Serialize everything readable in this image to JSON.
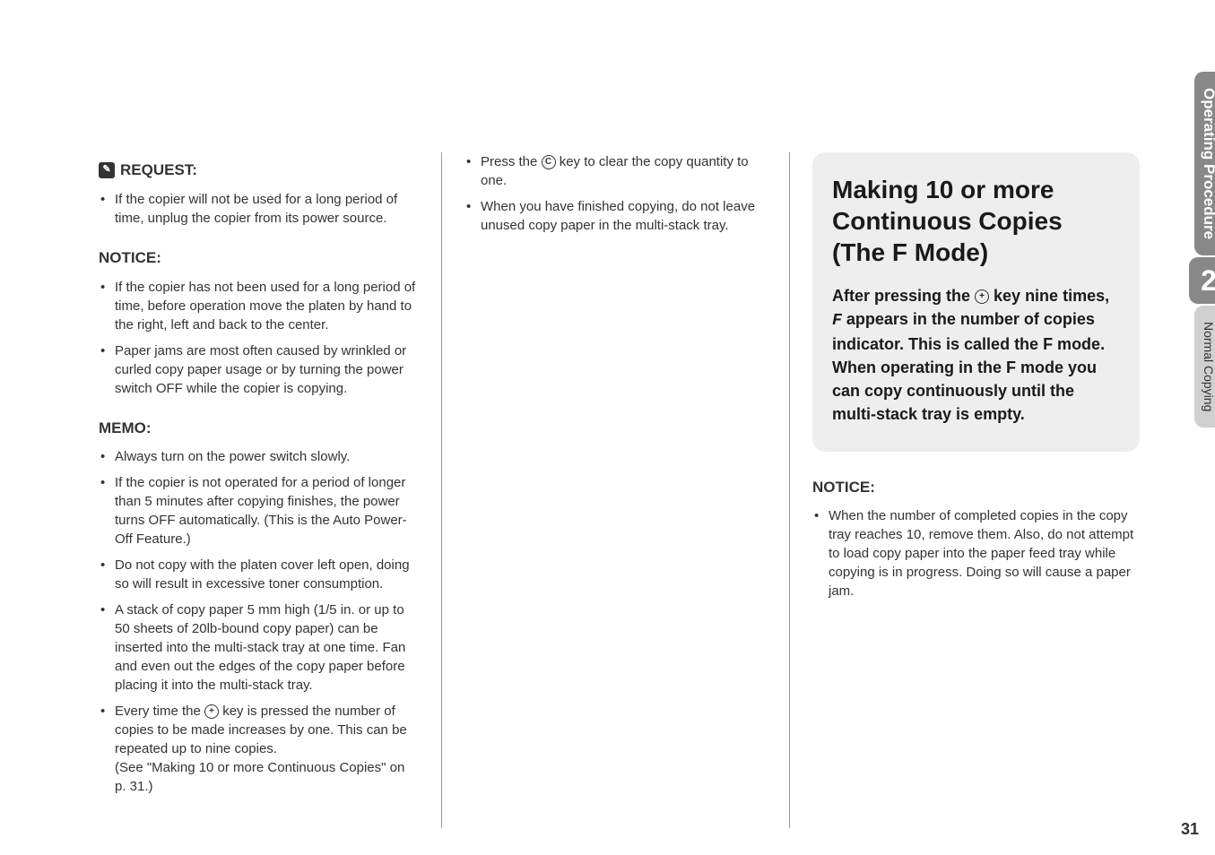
{
  "col1": {
    "request_heading": "REQUEST:",
    "request_items": [
      "If the copier will not be used for a long period of time, unplug the copier from its power source."
    ],
    "notice_heading": "NOTICE:",
    "notice_items": [
      "If the copier has not been used for a long period of time, before operation move the platen by hand to the right, left and back to the center.",
      "Paper jams are most often caused by wrinkled or curled copy paper usage or by turning the power switch OFF while the copier is copying."
    ],
    "memo_heading": "MEMO:",
    "memo_item_1": "Always turn on the power switch slowly.",
    "memo_item_2": "If the copier is not operated for a period of longer than 5 minutes after copying finishes, the power turns OFF automatically. (This is the Auto Power-Off Feature.)",
    "memo_item_3": "Do not copy with the platen cover left open, doing so will result in excessive toner consumption.",
    "memo_item_4": "A stack of copy paper 5 mm high (1/5 in. or up to 50 sheets of 20lb-bound copy paper) can be inserted into the multi-stack tray at one time. Fan and even out the edges of the copy paper before placing it into the multi-stack tray.",
    "memo_item_5_a": "Every time the ",
    "memo_item_5_b": " key is pressed the number of copies to be made increases by one. This can be repeated up to nine copies.",
    "memo_item_5_c": "(See \"Making 10 or more Continuous Copies\" on p. 31.)"
  },
  "col2": {
    "item_1_a": "Press the ",
    "item_1_b": " key to clear the copy quantity to one.",
    "item_2": "When you have finished copying, do not leave unused copy paper in the multi-stack tray."
  },
  "col3": {
    "main_title": "Making 10 or more Continuous Copies (The F Mode)",
    "subtitle_a": "After pressing the ",
    "subtitle_b": " key nine times, ",
    "subtitle_c": " appears in the number of copies indicator. This is called the F mode. When operating in the F mode you can copy continuously until the multi-stack tray is empty.",
    "notice_heading": "NOTICE:",
    "notice_item": "When the number of completed copies in the copy tray reaches 10, remove them. Also, do not attempt to load copy paper into the paper feed tray while copying is in progress. Doing so will cause a paper jam."
  },
  "sidebar": {
    "tab1": "Operating Procedure",
    "chapter": "2",
    "tab2": "Normal Copying"
  },
  "page_number": "31",
  "icons": {
    "plus_glyph": "+",
    "clear_glyph": "C",
    "f_glyph": "F"
  }
}
